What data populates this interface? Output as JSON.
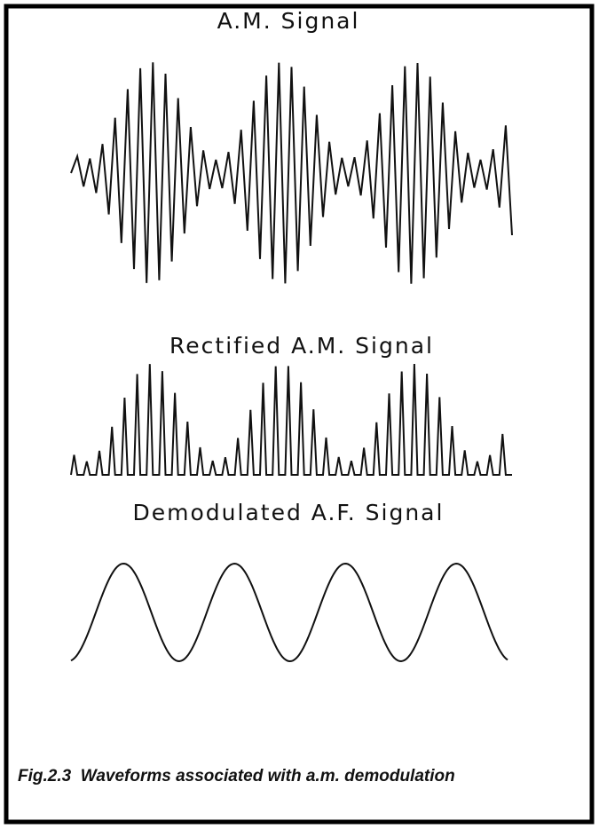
{
  "panels": [
    {
      "label": "A.M. Signal"
    },
    {
      "label": "Rectified A.M. Signal"
    },
    {
      "label": "Demodulated A.F. Signal"
    }
  ],
  "caption": "Fig.2.3  Waveforms associated with a.m. demodulation"
}
